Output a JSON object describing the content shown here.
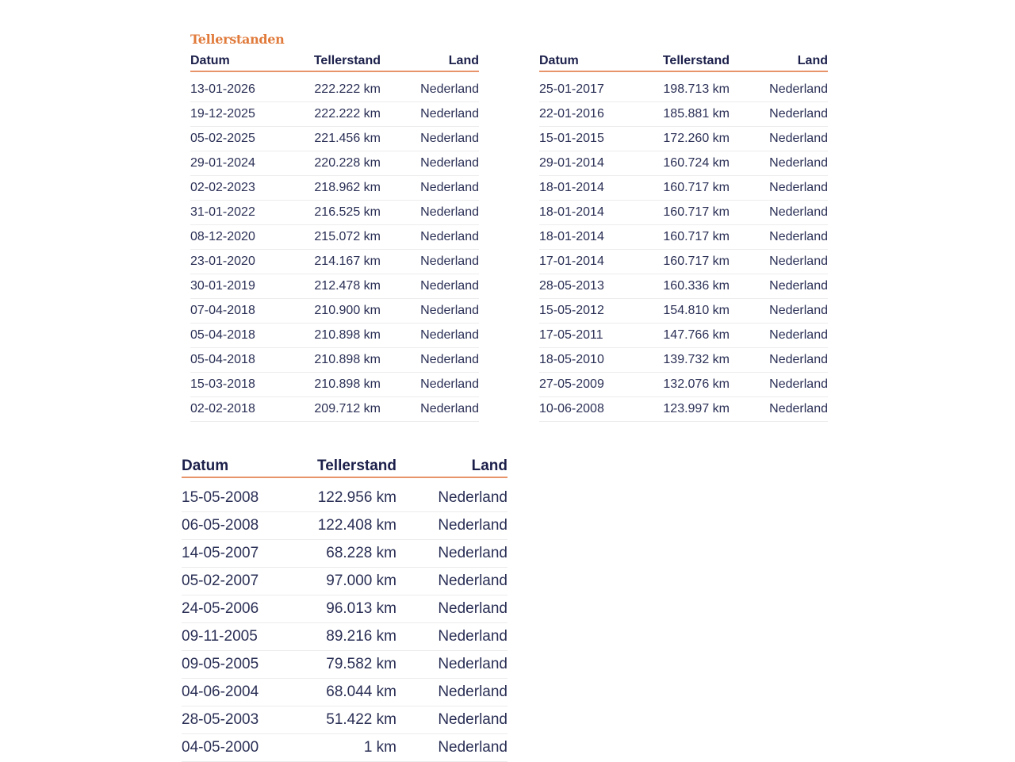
{
  "title": "Tellerstanden",
  "headers": {
    "datum": "Datum",
    "tellerstand": "Tellerstand",
    "land": "Land"
  },
  "tables": [
    {
      "rows": [
        [
          "13-01-2026",
          "222.222 km",
          "Nederland"
        ],
        [
          "19-12-2025",
          "222.222 km",
          "Nederland"
        ],
        [
          "05-02-2025",
          "221.456 km",
          "Nederland"
        ],
        [
          "29-01-2024",
          "220.228 km",
          "Nederland"
        ],
        [
          "02-02-2023",
          "218.962 km",
          "Nederland"
        ],
        [
          "31-01-2022",
          "216.525 km",
          "Nederland"
        ],
        [
          "08-12-2020",
          "215.072 km",
          "Nederland"
        ],
        [
          "23-01-2020",
          "214.167 km",
          "Nederland"
        ],
        [
          "30-01-2019",
          "212.478 km",
          "Nederland"
        ],
        [
          "07-04-2018",
          "210.900 km",
          "Nederland"
        ],
        [
          "05-04-2018",
          "210.898 km",
          "Nederland"
        ],
        [
          "05-04-2018",
          "210.898 km",
          "Nederland"
        ],
        [
          "15-03-2018",
          "210.898 km",
          "Nederland"
        ],
        [
          "02-02-2018",
          "209.712 km",
          "Nederland"
        ]
      ]
    },
    {
      "rows": [
        [
          "25-01-2017",
          "198.713 km",
          "Nederland"
        ],
        [
          "22-01-2016",
          "185.881 km",
          "Nederland"
        ],
        [
          "15-01-2015",
          "172.260 km",
          "Nederland"
        ],
        [
          "29-01-2014",
          "160.724 km",
          "Nederland"
        ],
        [
          "18-01-2014",
          "160.717 km",
          "Nederland"
        ],
        [
          "18-01-2014",
          "160.717 km",
          "Nederland"
        ],
        [
          "18-01-2014",
          "160.717 km",
          "Nederland"
        ],
        [
          "17-01-2014",
          "160.717 km",
          "Nederland"
        ],
        [
          "28-05-2013",
          "160.336 km",
          "Nederland"
        ],
        [
          "15-05-2012",
          "154.810 km",
          "Nederland"
        ],
        [
          "17-05-2011",
          "147.766 km",
          "Nederland"
        ],
        [
          "18-05-2010",
          "139.732 km",
          "Nederland"
        ],
        [
          "27-05-2009",
          "132.076 km",
          "Nederland"
        ],
        [
          "10-06-2008",
          "123.997 km",
          "Nederland"
        ]
      ]
    },
    {
      "rows": [
        [
          "15-05-2008",
          "122.956 km",
          "Nederland"
        ],
        [
          "06-05-2008",
          "122.408 km",
          "Nederland"
        ],
        [
          "14-05-2007",
          "68.228 km",
          "Nederland"
        ],
        [
          "05-02-2007",
          "97.000 km",
          "Nederland"
        ],
        [
          "24-05-2006",
          "96.013 km",
          "Nederland"
        ],
        [
          "09-11-2005",
          "89.216 km",
          "Nederland"
        ],
        [
          "09-05-2005",
          "79.582 km",
          "Nederland"
        ],
        [
          "04-06-2004",
          "68.044 km",
          "Nederland"
        ],
        [
          "28-05-2003",
          "51.422 km",
          "Nederland"
        ],
        [
          "04-05-2000",
          "1 km",
          "Nederland"
        ]
      ]
    }
  ]
}
